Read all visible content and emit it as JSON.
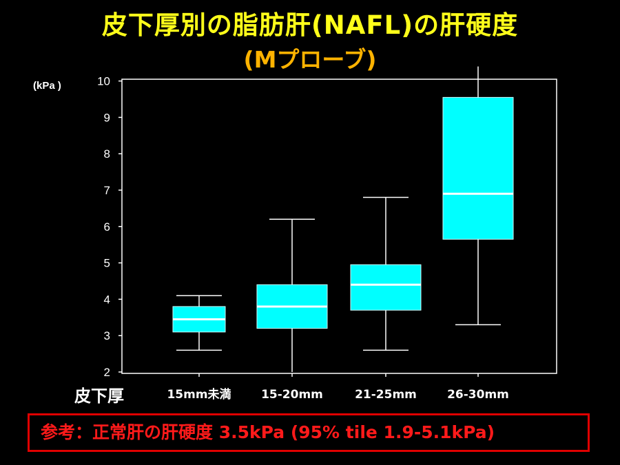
{
  "title_line1": "皮下厚別の脂肪肝(NAFL)の肝硬度",
  "title_line2": "(Mプローブ)",
  "note": "参考：正常肝の肝硬度  3.5kPa (95% tile 1.9-5.1kPa)",
  "colors": {
    "box_fill": "#00ffff",
    "median": "#ffffff",
    "title": "#ffff00",
    "subtitle": "#ffb300",
    "note": "#ff0000"
  },
  "chart_data": {
    "type": "box",
    "ylabel": "(kPa )",
    "xlabel": "皮下厚",
    "ylim": [
      2,
      10
    ],
    "yticks": [
      2,
      3,
      4,
      5,
      6,
      7,
      8,
      9,
      10
    ],
    "categories": [
      "15mm未満",
      "15-20mm",
      "21-25mm",
      "26-30mm"
    ],
    "boxes": [
      {
        "category": "15mm未満",
        "whisker_low": 2.6,
        "q1": 3.1,
        "median": 3.45,
        "q3": 3.8,
        "whisker_high": 4.1
      },
      {
        "category": "15-20mm",
        "whisker_low": 2.0,
        "q1": 3.2,
        "median": 3.8,
        "q3": 4.4,
        "whisker_high": 6.2
      },
      {
        "category": "21-25mm",
        "whisker_low": 2.6,
        "q1": 3.7,
        "median": 4.4,
        "q3": 4.95,
        "whisker_high": 6.8
      },
      {
        "category": "26-30mm",
        "whisker_low": 3.3,
        "q1": 5.65,
        "median": 6.9,
        "q3": 9.55,
        "whisker_high": 10.4
      }
    ],
    "grid": false
  }
}
